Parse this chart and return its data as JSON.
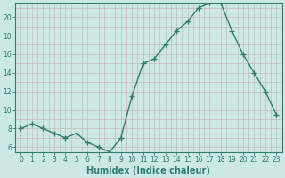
{
  "x": [
    0,
    1,
    2,
    3,
    4,
    5,
    6,
    7,
    8,
    9,
    10,
    11,
    12,
    13,
    14,
    15,
    16,
    17,
    18,
    19,
    20,
    21,
    22,
    23
  ],
  "y": [
    8,
    8.5,
    8,
    7.5,
    7,
    7.5,
    6.5,
    6,
    5.5,
    7,
    11.5,
    15,
    15.5,
    17,
    18.5,
    19.5,
    21,
    21.5,
    21.5,
    18.5,
    16,
    14,
    12,
    9.5
  ],
  "line_color": "#2e7d6e",
  "marker": "+",
  "marker_size": 4,
  "bg_color": "#cce8e4",
  "grid_color_major": "#c8b8b8",
  "grid_color_minor": "#c8b8b8",
  "xlabel": "Humidex (Indice chaleur)",
  "xlim": [
    -0.5,
    23.5
  ],
  "ylim": [
    5.5,
    21.5
  ],
  "yticks": [
    6,
    8,
    10,
    12,
    14,
    16,
    18,
    20
  ],
  "xticks": [
    0,
    1,
    2,
    3,
    4,
    5,
    6,
    7,
    8,
    9,
    10,
    11,
    12,
    13,
    14,
    15,
    16,
    17,
    18,
    19,
    20,
    21,
    22,
    23
  ],
  "xtick_labels": [
    "0",
    "1",
    "2",
    "3",
    "4",
    "5",
    "6",
    "7",
    "8",
    "9",
    "10",
    "11",
    "12",
    "13",
    "14",
    "15",
    "16",
    "17",
    "18",
    "19",
    "20",
    "21",
    "22",
    "23"
  ],
  "axis_color": "#2e7d6e",
  "tick_color": "#2e7d6e",
  "label_color": "#2e7d6e",
  "tick_fontsize": 5.5,
  "xlabel_fontsize": 7
}
